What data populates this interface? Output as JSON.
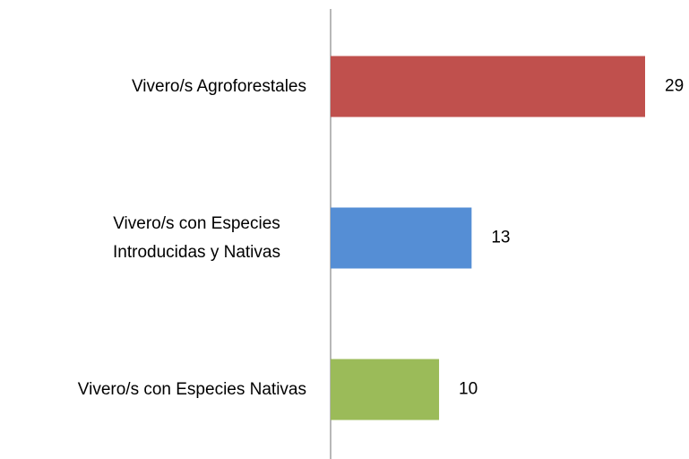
{
  "chart_data": {
    "type": "bar",
    "orientation": "horizontal",
    "categories": [
      "Vivero/s Agroforestales",
      "Vivero/s con Especies Introducidas y Nativas",
      "Vivero/s con Especies Nativas"
    ],
    "values": [
      29,
      13,
      10
    ],
    "colors": [
      "#c0504d",
      "#558ed5",
      "#9bbb59"
    ]
  }
}
